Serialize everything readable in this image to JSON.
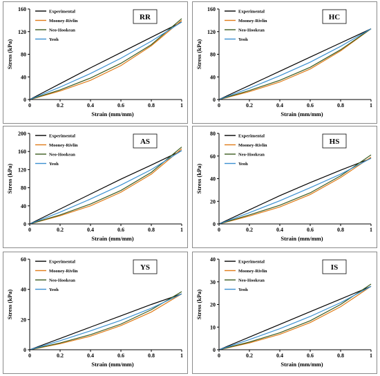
{
  "colors": {
    "experimental": "#000000",
    "mooney_rivlin": "#e07b17",
    "neo_hookean": "#3a5a1e",
    "yeoh": "#3a8fd0"
  },
  "chart_data": [
    {
      "type": "line",
      "tag": "RR",
      "xlabel": "Strain (mm/mm)",
      "ylabel": "Stress (kPa)",
      "xlim": [
        0,
        1
      ],
      "ylim": [
        0,
        160
      ],
      "xticks": [
        "0",
        "0.2",
        "0.4",
        "0.6",
        "0.8",
        "1"
      ],
      "yticks": [
        "0",
        "40",
        "80",
        "120",
        "160"
      ],
      "legend": [
        "Experimental",
        "Mooney-Rivlin",
        "Neo-Hookean",
        "Yeoh"
      ],
      "x": [
        0,
        0.2,
        0.4,
        0.6,
        0.8,
        1.0
      ],
      "series": [
        {
          "name": "Experimental",
          "values": [
            0,
            28,
            56,
            83,
            110,
            137
          ]
        },
        {
          "name": "Mooney-Rivlin",
          "values": [
            0,
            15,
            34,
            60,
            95,
            140
          ]
        },
        {
          "name": "Neo-Hookean",
          "values": [
            0,
            17,
            38,
            64,
            97,
            143
          ]
        },
        {
          "name": "Yeoh",
          "values": [
            0,
            22,
            46,
            73,
            103,
            137
          ]
        }
      ]
    },
    {
      "type": "line",
      "tag": "HC",
      "xlabel": "Strain (mm/mm)",
      "ylabel": "Stress (kPa)",
      "xlim": [
        0,
        1
      ],
      "ylim": [
        0,
        160
      ],
      "xticks": [
        "0",
        "0.2",
        "0.4",
        "0.6",
        "0.8",
        "1"
      ],
      "yticks": [
        "0",
        "40",
        "80",
        "120",
        "160"
      ],
      "legend": [
        "Experimental",
        "Mooney-Rivlin",
        "Neo-Hookean",
        "Yeoh"
      ],
      "x": [
        0,
        0.2,
        0.4,
        0.6,
        0.8,
        1.0
      ],
      "series": [
        {
          "name": "Experimental",
          "values": [
            0,
            25,
            50,
            75,
            100,
            125
          ]
        },
        {
          "name": "Mooney-Rivlin",
          "values": [
            0,
            14,
            31,
            54,
            86,
            125
          ]
        },
        {
          "name": "Neo-Hookean",
          "values": [
            0,
            16,
            34,
            57,
            88,
            125
          ]
        },
        {
          "name": "Yeoh",
          "values": [
            0,
            20,
            42,
            66,
            94,
            125
          ]
        }
      ]
    },
    {
      "type": "line",
      "tag": "AS",
      "xlabel": "Strain (mm/mm)",
      "ylabel": "Stress (kPa)",
      "xlim": [
        0,
        1
      ],
      "ylim": [
        0,
        200
      ],
      "xticks": [
        "0",
        "0.2",
        "0.4",
        "0.6",
        "0.8",
        "1"
      ],
      "yticks": [
        "0",
        "40",
        "80",
        "120",
        "160",
        "200"
      ],
      "legend": [
        "Experimental",
        "Mooney-Rivlin",
        "Neo-Hookean",
        "Yeoh"
      ],
      "x": [
        0,
        0.2,
        0.4,
        0.6,
        0.8,
        1.0
      ],
      "series": [
        {
          "name": "Experimental",
          "values": [
            0,
            33,
            66,
            99,
            130,
            162
          ]
        },
        {
          "name": "Mooney-Rivlin",
          "values": [
            0,
            18,
            40,
            70,
            110,
            166
          ]
        },
        {
          "name": "Neo-Hookean",
          "values": [
            0,
            20,
            44,
            74,
            114,
            170
          ]
        },
        {
          "name": "Yeoh",
          "values": [
            0,
            26,
            55,
            86,
            120,
            162
          ]
        }
      ]
    },
    {
      "type": "line",
      "tag": "HS",
      "xlabel": "Strain (mm/mm)",
      "ylabel": "Stress (kPa)",
      "xlim": [
        0,
        1
      ],
      "ylim": [
        0,
        80
      ],
      "xticks": [
        "0",
        "0.2",
        "0.4",
        "0.6",
        "0.8",
        "1"
      ],
      "yticks": [
        "0",
        "20",
        "40",
        "60",
        "80"
      ],
      "legend": [
        "Experimental",
        "Mooney-Rivlin",
        "Neo-Hookean",
        "Yeoh"
      ],
      "x": [
        0,
        0.2,
        0.4,
        0.6,
        0.8,
        1.0
      ],
      "series": [
        {
          "name": "Experimental",
          "values": [
            0,
            12.5,
            25,
            36.5,
            47.5,
            58
          ]
        },
        {
          "name": "Mooney-Rivlin",
          "values": [
            0,
            7,
            15,
            26,
            41,
            59
          ]
        },
        {
          "name": "Neo-Hookean",
          "values": [
            0,
            8,
            16.5,
            27.5,
            42.5,
            61
          ]
        },
        {
          "name": "Yeoh",
          "values": [
            0,
            10,
            20.5,
            32,
            44,
            58
          ]
        }
      ]
    },
    {
      "type": "line",
      "tag": "YS",
      "xlabel": "Strain (mm/mm)",
      "ylabel": "Stress (kPa)",
      "xlim": [
        0,
        1
      ],
      "ylim": [
        0,
        60
      ],
      "xticks": [
        "0",
        "0.2",
        "0.4",
        "0.6",
        "0.8",
        "1"
      ],
      "yticks": [
        "0",
        "20",
        "40",
        "60"
      ],
      "legend": [
        "Experimental",
        "Mooney-Rivlin",
        "Neo-Hookean",
        "Yeoh"
      ],
      "x": [
        0,
        0.2,
        0.4,
        0.6,
        0.8,
        1.0
      ],
      "series": [
        {
          "name": "Experimental",
          "values": [
            0,
            7.5,
            15,
            22.5,
            30,
            37
          ]
        },
        {
          "name": "Mooney-Rivlin",
          "values": [
            0,
            4,
            9,
            16,
            25,
            37
          ]
        },
        {
          "name": "Neo-Hookean",
          "values": [
            0,
            4.5,
            10,
            17,
            26.5,
            38.5
          ]
        },
        {
          "name": "Yeoh",
          "values": [
            0,
            6,
            12.5,
            19.5,
            27.5,
            37
          ]
        }
      ]
    },
    {
      "type": "line",
      "tag": "IS",
      "xlabel": "Strain (mm/mm)",
      "ylabel": "Stress (kPa)",
      "xlim": [
        0,
        1
      ],
      "ylim": [
        0,
        40
      ],
      "xticks": [
        "0",
        "0.2",
        "0.4",
        "0.6",
        "0.8",
        "1"
      ],
      "yticks": [
        "0",
        "10",
        "20",
        "30",
        "40"
      ],
      "legend": [
        "Experimental",
        "Mooney-Rivlin",
        "Neo-Hookean",
        "Yeoh"
      ],
      "x": [
        0,
        0.2,
        0.4,
        0.6,
        0.8,
        1.0
      ],
      "series": [
        {
          "name": "Experimental",
          "values": [
            0,
            5.6,
            11.2,
            16.8,
            22.4,
            28
          ]
        },
        {
          "name": "Mooney-Rivlin",
          "values": [
            0,
            3,
            6.8,
            12,
            19,
            28
          ]
        },
        {
          "name": "Neo-Hookean",
          "values": [
            0,
            3.4,
            7.5,
            12.8,
            20,
            29
          ]
        },
        {
          "name": "Yeoh",
          "values": [
            0,
            4.5,
            9.3,
            14.7,
            20.8,
            28
          ]
        }
      ]
    }
  ]
}
